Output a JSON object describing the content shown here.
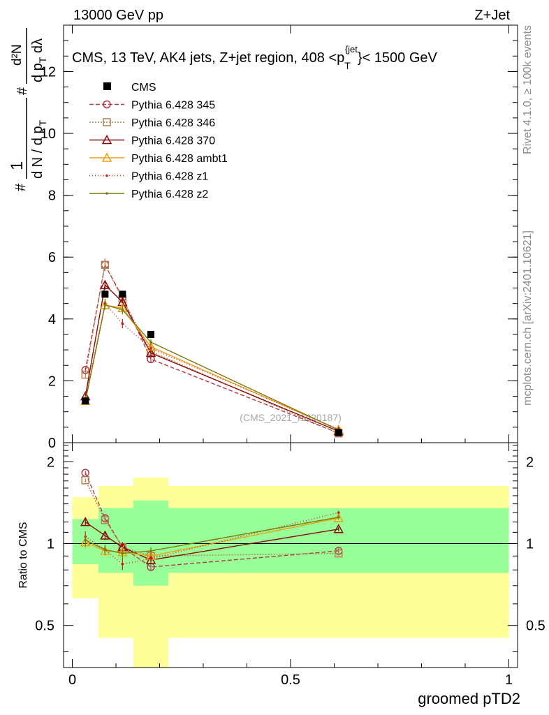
{
  "header": {
    "left": "13000 GeV pp",
    "right": "Z+Jet",
    "plot_title": "CMS, 13 TeV, AK4 jets, Z+jet region, 408 <p",
    "plot_title_sup": "{jet",
    "plot_title_sub": "T",
    "plot_title_end": "}< 1500 GeV",
    "watermark": "(CMS_2021_I1920187)"
  },
  "side_text": {
    "top": "Rivet 4.1.0, ≥ 100k events",
    "bottom": "mcplots.cern.ch [arXiv:2401.10621]"
  },
  "axes": {
    "ylabel_main": {
      "hash1": "#",
      "numer1": "1",
      "denom1": "d N / d p",
      "denom1_sub": "T",
      "hash2": "#",
      "numer2": "d²N",
      "denom2": "d p",
      "denom2_sub": "T",
      "denom2_end": " dλ"
    },
    "ylabel_ratio": "Ratio to CMS",
    "xlabel": "groomed pTD2"
  },
  "chart_data": {
    "type": "scatter",
    "title": "CMS, 13 TeV, AK4 jets, Z+jet region, 408 <pT{jet}< 1500 GeV",
    "xlabel": "groomed pTD2",
    "xlim": [
      -0.02,
      1.02
    ],
    "x_ticks": [
      {
        "v": 0,
        "label": "0"
      },
      {
        "v": 0.5,
        "label": "0.5"
      },
      {
        "v": 1,
        "label": "1"
      }
    ],
    "main": {
      "ylim": [
        0,
        13.5
      ],
      "y_ticks": [
        {
          "v": 0,
          "label": "0"
        },
        {
          "v": 2,
          "label": "2"
        },
        {
          "v": 4,
          "label": "4"
        },
        {
          "v": 6,
          "label": "6"
        },
        {
          "v": 8,
          "label": "8"
        },
        {
          "v": 10,
          "label": "10"
        },
        {
          "v": 12,
          "label": "12"
        }
      ]
    },
    "ratio": {
      "ylabel": "Ratio to CMS",
      "ylim": [
        0.35,
        2.35
      ],
      "y_ticks": [
        {
          "v": 0.5,
          "label": "0.5"
        },
        {
          "v": 1,
          "label": "1"
        },
        {
          "v": 2,
          "label": "2"
        }
      ],
      "bins": [
        {
          "x0": 0.0,
          "x1": 0.06,
          "inner": [
            0.84,
            1.23
          ],
          "outer": [
            0.63,
            1.48
          ]
        },
        {
          "x0": 0.06,
          "x1": 0.14,
          "inner": [
            0.78,
            1.35
          ],
          "outer": [
            0.45,
            1.63
          ]
        },
        {
          "x0": 0.14,
          "x1": 0.22,
          "inner": [
            0.7,
            1.44
          ],
          "outer": [
            0.35,
            1.75
          ]
        },
        {
          "x0": 0.22,
          "x1": 1.0,
          "inner": [
            0.78,
            1.35
          ],
          "outer": [
            0.45,
            1.63
          ]
        }
      ]
    },
    "x": [
      0.03,
      0.075,
      0.115,
      0.18,
      0.61
    ],
    "data": {
      "name": "CMS",
      "values": [
        1.35,
        4.8,
        4.8,
        3.5,
        0.33
      ]
    },
    "series": [
      {
        "name": "Pythia 6.428 345",
        "color": "#b03a48",
        "dash": "6,3",
        "marker": "circle",
        "values": [
          2.35,
          5.75,
          4.7,
          2.7,
          0.31
        ],
        "errors": [
          0.1,
          0.2,
          0.15,
          0.1,
          0.03
        ],
        "ratio": [
          1.82,
          1.24,
          0.97,
          0.82,
          0.94
        ],
        "ratio_errors": [
          0.03,
          0.04,
          0.03,
          0.02,
          0.02
        ]
      },
      {
        "name": "Pythia 6.428 346",
        "color": "#b08050",
        "dash": "2,2",
        "marker": "square",
        "values": [
          2.2,
          5.75,
          4.65,
          2.95,
          0.3
        ],
        "errors": [
          0.1,
          0.2,
          0.15,
          0.1,
          0.03
        ],
        "ratio": [
          1.71,
          1.22,
          0.97,
          0.9,
          0.92
        ],
        "ratio_errors": [
          0.03,
          0.04,
          0.03,
          0.02,
          0.02
        ]
      },
      {
        "name": "Pythia 6.428 370",
        "color": "#8b0a0a",
        "dash": "",
        "marker": "triangle",
        "values": [
          1.5,
          5.1,
          4.55,
          2.9,
          0.37
        ],
        "errors": [
          0.08,
          0.15,
          0.12,
          0.1,
          0.03
        ],
        "ratio": [
          1.2,
          1.07,
          0.97,
          0.87,
          1.13
        ],
        "ratio_errors": [
          0.04,
          0.04,
          0.03,
          0.03,
          0.02
        ]
      },
      {
        "name": "Pythia 6.428 ambt1",
        "color": "#f0a010",
        "dash": "",
        "marker": "triangle",
        "values": [
          1.35,
          4.45,
          4.35,
          3.1,
          0.42
        ],
        "errors": [
          0.08,
          0.15,
          0.15,
          0.1,
          0.03
        ],
        "ratio": [
          1.01,
          0.94,
          0.93,
          0.9,
          1.24
        ],
        "ratio_errors": [
          0.05,
          0.04,
          0.04,
          0.03,
          0.02
        ]
      },
      {
        "name": "Pythia 6.428 z1",
        "color": "#cc2020",
        "dash": "1,3",
        "marker": "dot",
        "values": [
          1.4,
          4.5,
          3.85,
          3.05,
          0.44
        ],
        "errors": [
          0.08,
          0.15,
          0.15,
          0.1,
          0.03
        ],
        "ratio": [
          1.06,
          0.95,
          0.84,
          0.88,
          1.3
        ],
        "ratio_errors": [
          0.05,
          0.04,
          0.04,
          0.03,
          0.02
        ]
      },
      {
        "name": "Pythia 6.428 z2",
        "color": "#7a7a10",
        "dash": "",
        "marker": "dot",
        "values": [
          1.35,
          4.45,
          4.3,
          3.25,
          0.41
        ],
        "errors": [
          0.08,
          0.15,
          0.15,
          0.1,
          0.03
        ],
        "ratio": [
          1.03,
          0.95,
          0.92,
          0.94,
          1.25
        ],
        "ratio_errors": [
          0.05,
          0.04,
          0.04,
          0.03,
          0.02
        ]
      }
    ],
    "legend_placement": "top-left",
    "grid": false
  }
}
